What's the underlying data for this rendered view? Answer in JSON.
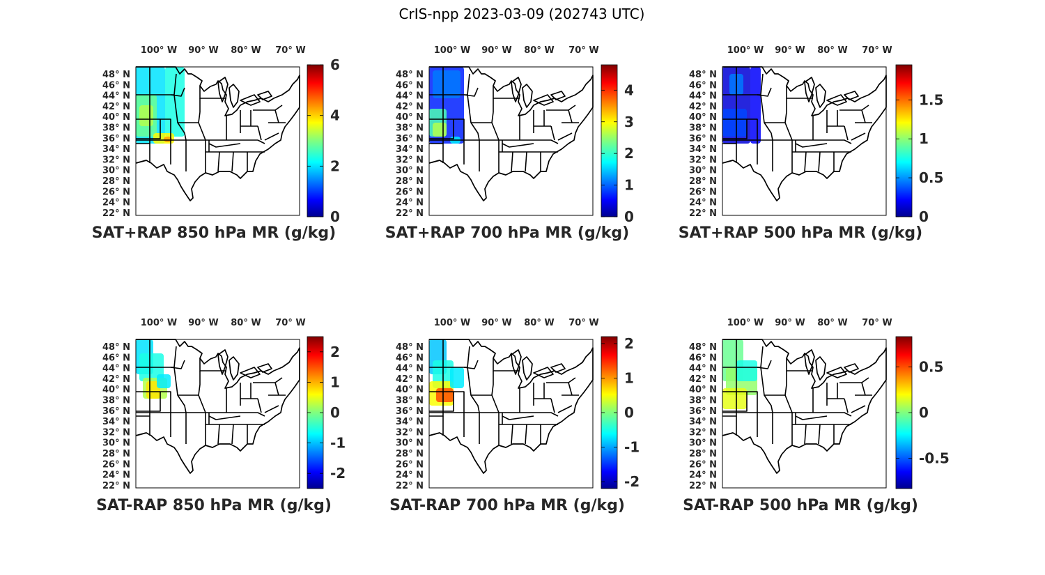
{
  "figure": {
    "suptitle": "CrIS-npp 2023-03-09 (202743 UTC)"
  },
  "map_axes": {
    "lon_labels": [
      "100",
      "90",
      "80",
      "70"
    ],
    "lon_suffix": "W",
    "lat_labels": [
      "48",
      "46",
      "44",
      "42",
      "40",
      "38",
      "36",
      "34",
      "32",
      "30",
      "28",
      "26",
      "24",
      "22"
    ],
    "lat_suffix": "N",
    "degree_symbol": "°"
  },
  "colormap": {
    "name": "jet",
    "stops": [
      "#00008f",
      "#0000ff",
      "#00a0ff",
      "#00ffff",
      "#80ff80",
      "#ffff00",
      "#ff8000",
      "#ff0000",
      "#800000"
    ]
  },
  "panels": [
    {
      "id": "sum850",
      "title": "SAT+RAP 850 hPa MR (g/kg)",
      "colorbar": {
        "ticks": [
          "6",
          "4",
          "2",
          "0"
        ],
        "min": 0,
        "max": 6,
        "values": [
          6,
          4,
          2,
          0
        ]
      }
    },
    {
      "id": "sum700",
      "title": "SAT+RAP 700 hPa MR (g/kg)",
      "colorbar": {
        "ticks": [
          "4",
          "3",
          "2",
          "1",
          "0"
        ],
        "min": 0,
        "max": 4.8,
        "values": [
          4,
          3,
          2,
          1,
          0
        ]
      }
    },
    {
      "id": "sum500",
      "title": "SAT+RAP 500 hPa MR (g/kg)",
      "colorbar": {
        "ticks": [
          "1.5",
          "1",
          "0.5",
          "0"
        ],
        "min": 0,
        "max": 1.95,
        "values": [
          1.5,
          1,
          0.5,
          0
        ]
      }
    },
    {
      "id": "diff850",
      "title": "SAT-RAP 850 hPa MR (g/kg)",
      "colorbar": {
        "ticks": [
          "2",
          "1",
          "0",
          "-1",
          "-2"
        ],
        "min": -2.5,
        "max": 2.5,
        "values": [
          2,
          1,
          0,
          -1,
          -2
        ]
      }
    },
    {
      "id": "diff700",
      "title": "SAT-RAP 700 hPa MR (g/kg)",
      "colorbar": {
        "ticks": [
          "2",
          "1",
          "0",
          "-1",
          "-2"
        ],
        "min": -2.2,
        "max": 2.2,
        "values": [
          2,
          1,
          0,
          -1,
          -2
        ]
      }
    },
    {
      "id": "diff500",
      "title": "SAT-RAP 500 hPa MR (g/kg)",
      "colorbar": {
        "ticks": [
          "0.5",
          "0",
          "-0.5"
        ],
        "min": -0.83,
        "max": 0.83,
        "values": [
          0.5,
          0,
          -0.5
        ]
      }
    }
  ]
}
